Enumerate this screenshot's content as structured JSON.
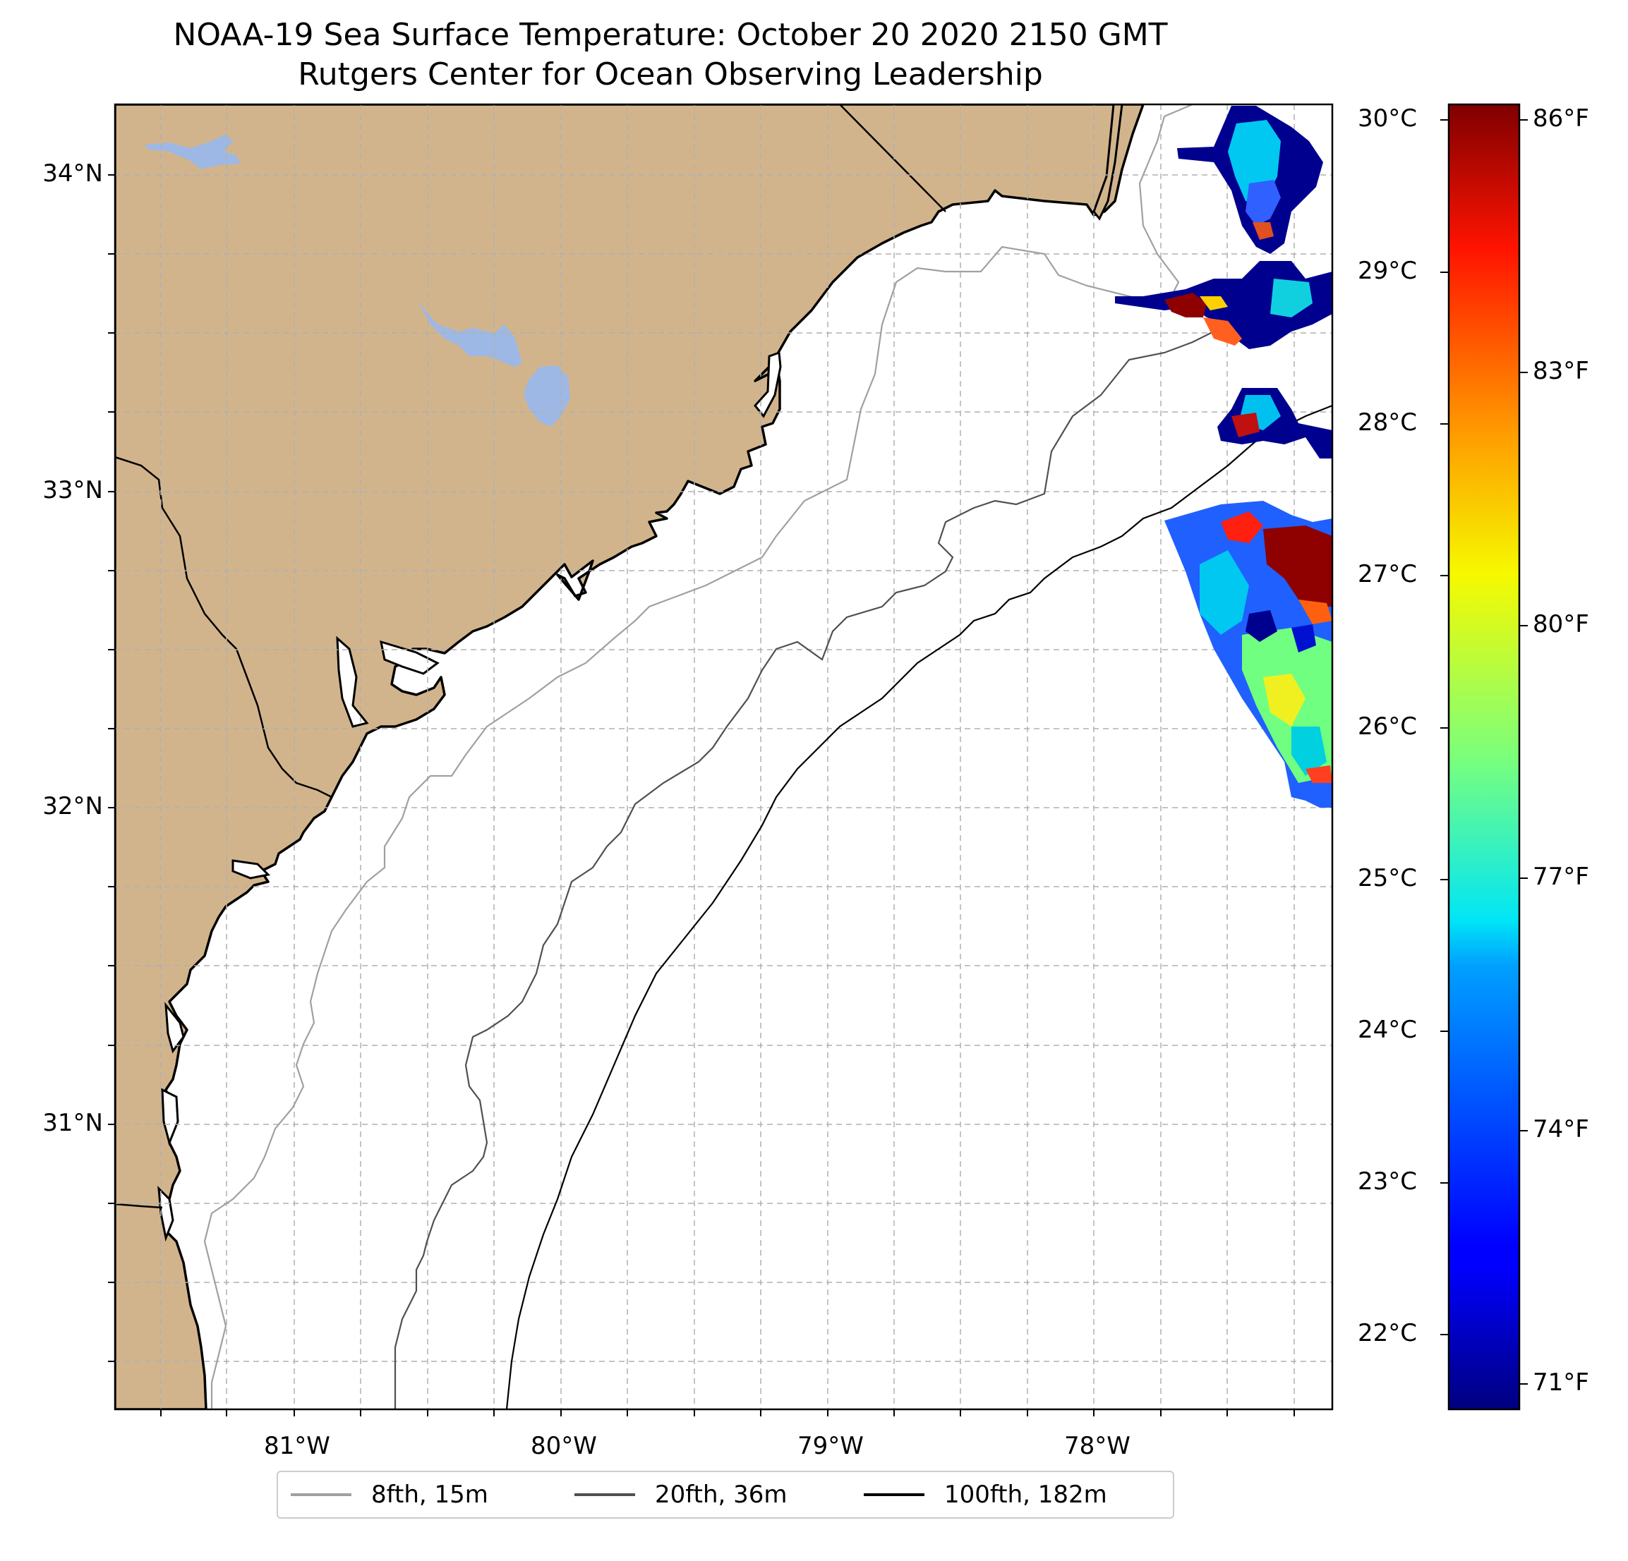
{
  "title": "NOAA-19 Sea Surface Temperature: October 20 2020 2150 GMT",
  "subtitle": "Rutgers Center for Ocean Observing Leadership",
  "map": {
    "lon_range": [
      -81.67,
      -77.12
    ],
    "lat_range": [
      30.22,
      34.22
    ],
    "lat_tick_labels": [
      {
        "value": 34,
        "label": "34°N"
      },
      {
        "value": 33,
        "label": "33°N"
      },
      {
        "value": 32,
        "label": "32°N"
      },
      {
        "value": 31,
        "label": "31°N"
      }
    ],
    "lon_tick_labels": [
      {
        "value": -81,
        "label": "81°W"
      },
      {
        "value": -80,
        "label": "80°W"
      },
      {
        "value": -79,
        "label": "79°W"
      },
      {
        "value": -78,
        "label": "78°W"
      }
    ],
    "gridlines": true,
    "land_color": "#D2B48C",
    "lake_color": "#9DB8E4",
    "ocean_color": "#FFFFFF"
  },
  "colorbar": {
    "colormap": "jet",
    "celsius_labels": [
      "30°C",
      "29°C",
      "28°C",
      "27°C",
      "26°C",
      "25°C",
      "24°C",
      "23°C",
      "22°C"
    ],
    "fahrenheit_labels": [
      "86°F",
      "83°F",
      "80°F",
      "77°F",
      "74°F",
      "71°F"
    ]
  },
  "legend": {
    "placement": "bottom-center",
    "items": [
      {
        "label": "8fth, 15m",
        "color": "#A0A0A0"
      },
      {
        "label": "20fth, 36m",
        "color": "#505050"
      },
      {
        "label": "100fth, 182m",
        "color": "#000000"
      }
    ]
  }
}
